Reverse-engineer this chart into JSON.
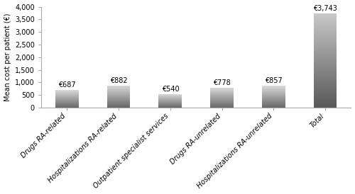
{
  "categories": [
    "Drugs RA-related",
    "Hospitalizations RA-related",
    "Outpatient specialist services",
    "Drugs RA-unrelated",
    "Hospitalizations RA-unrelated",
    "Total"
  ],
  "values": [
    687,
    882,
    540,
    778,
    857,
    3743
  ],
  "labels": [
    "€687",
    "€882",
    "€540",
    "€778",
    "€857",
    "€3,743"
  ],
  "ylabel": "Mean cost per patient (€)",
  "ylim": [
    0,
    4000
  ],
  "yticks": [
    0,
    500,
    1000,
    1500,
    2000,
    2500,
    3000,
    3500,
    4000
  ],
  "ytick_labels": [
    "0",
    "500",
    "1,000",
    "1,500",
    "2,000",
    "2,500",
    "3,000",
    "3,500",
    "4,000"
  ],
  "bar_color_top": "#d8d8d8",
  "bar_color_bottom": "#686868",
  "total_color_top": "#c8c8c8",
  "total_color_bottom": "#585858",
  "background_color": "#ffffff",
  "label_fontsize": 7,
  "axis_label_fontsize": 7,
  "tick_label_fontsize": 7,
  "xtick_rotation": 45,
  "bar_width": 0.45
}
